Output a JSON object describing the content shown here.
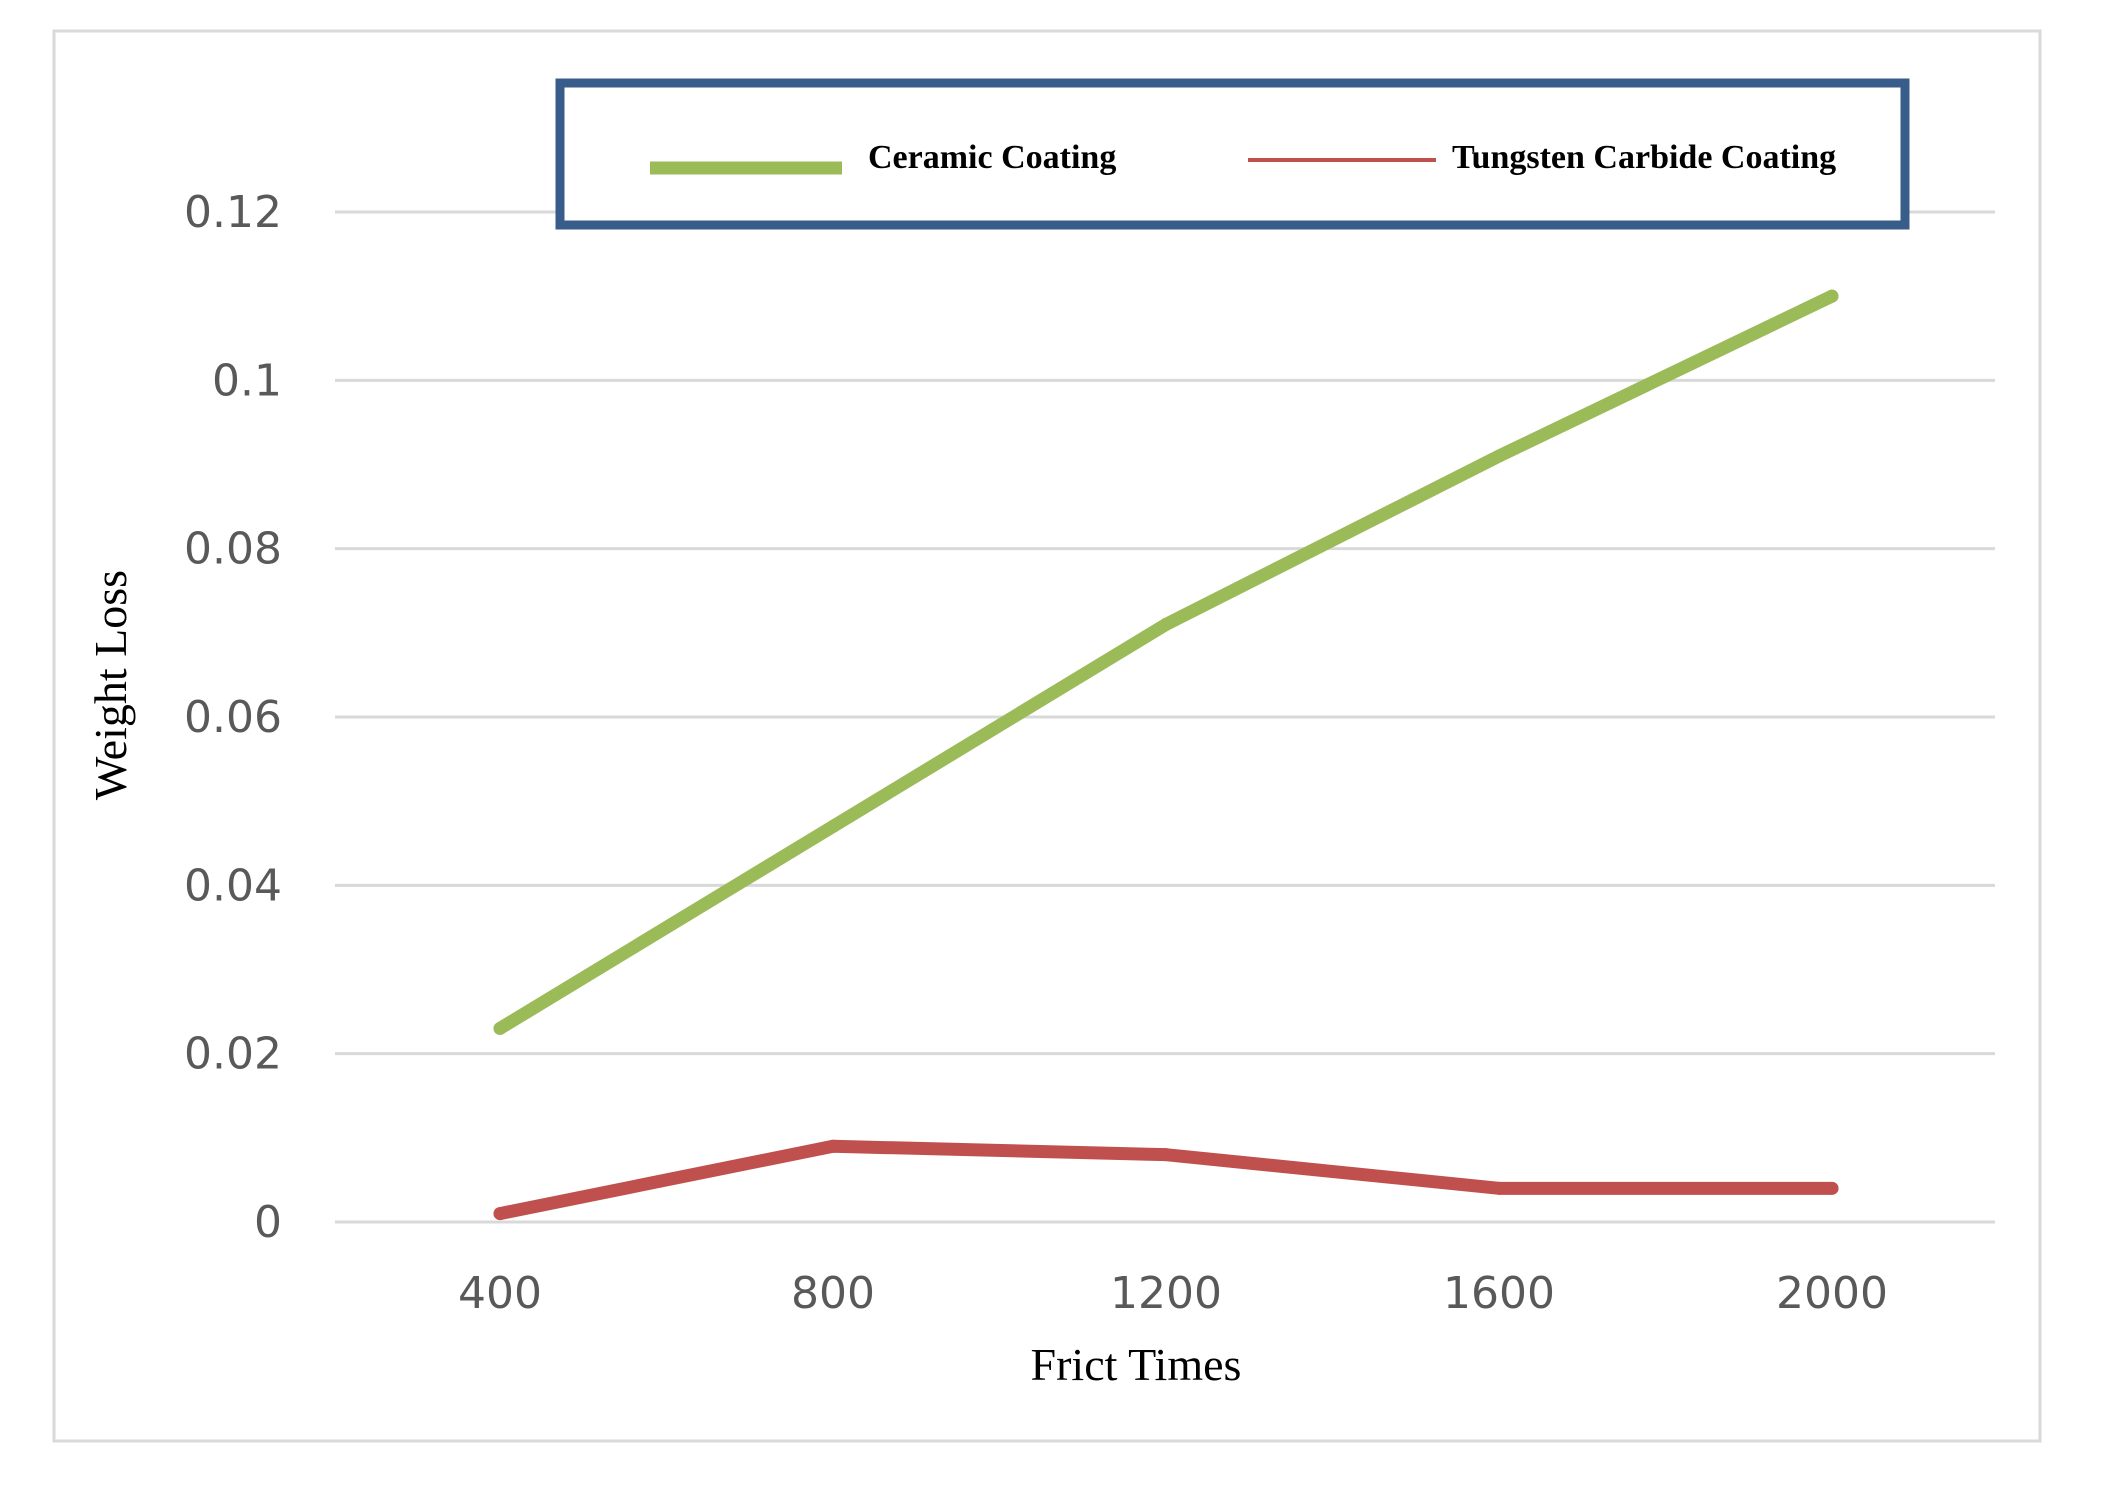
{
  "chart_data": {
    "type": "line",
    "xlabel": "Frict Times",
    "ylabel": "Weight Loss",
    "categories": [
      "400",
      "800",
      "1200",
      "1600",
      "2000"
    ],
    "x": [
      400,
      800,
      1200,
      1600,
      2000
    ],
    "ylim": [
      0,
      0.12
    ],
    "yticks": [
      "0",
      "0.02",
      "0.04",
      "0.06",
      "0.08",
      "0.1",
      "0.12"
    ],
    "grid": true,
    "legend_position": "top",
    "series": [
      {
        "name": "Ceramic Coating",
        "color": "#9BBB59",
        "values": [
          0.023,
          0.047,
          0.071,
          0.091,
          0.11
        ]
      },
      {
        "name": "Tungsten Carbide Coating",
        "color": "#C0504D",
        "values": [
          0.001,
          0.009,
          0.008,
          0.004,
          0.004
        ]
      }
    ],
    "colors": {
      "gridline": "#D9D9D9",
      "frame": "#D9D9D9",
      "legend_border": "#385D8A",
      "tick_text": "#595959"
    }
  }
}
